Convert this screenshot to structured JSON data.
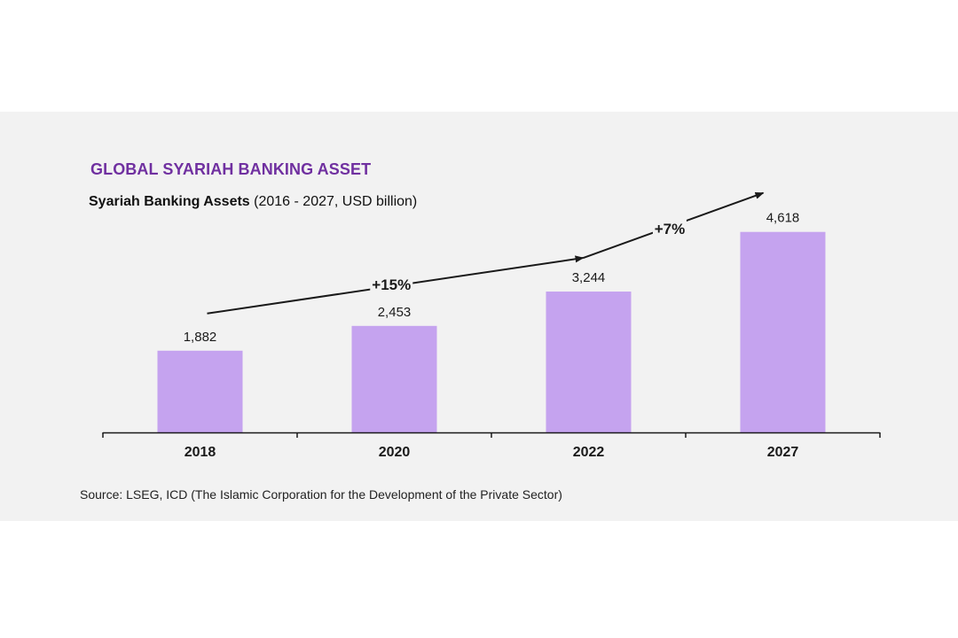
{
  "colors": {
    "title": "#7030a0",
    "bar": "#c5a3ef",
    "axis": "#1a1a1a",
    "text": "#1a1a1a",
    "panel": "#f2f2f2"
  },
  "chart_data": {
    "type": "bar",
    "title": "GLOBAL SYARIAH BANKING ASSET",
    "subtitle_bold": "Syariah Banking Assets",
    "subtitle_rest": " (2016 - 2027, USD billion)",
    "categories": [
      "2018",
      "2020",
      "2022",
      "2027"
    ],
    "values": [
      1882,
      2453,
      3244,
      4618
    ],
    "value_labels": [
      "1,882",
      "2,453",
      "3,244",
      "4,618"
    ],
    "ylim": [
      0,
      5000
    ],
    "grid": false,
    "legend": "none",
    "annotations": [
      {
        "label": "+15%",
        "from_category": "2018",
        "to_category": "2022"
      },
      {
        "label": "+7%",
        "from_category": "2022",
        "to_category": "2027"
      }
    ]
  },
  "source": "Source: LSEG, ICD (The Islamic Corporation for the Development of the Private Sector)"
}
